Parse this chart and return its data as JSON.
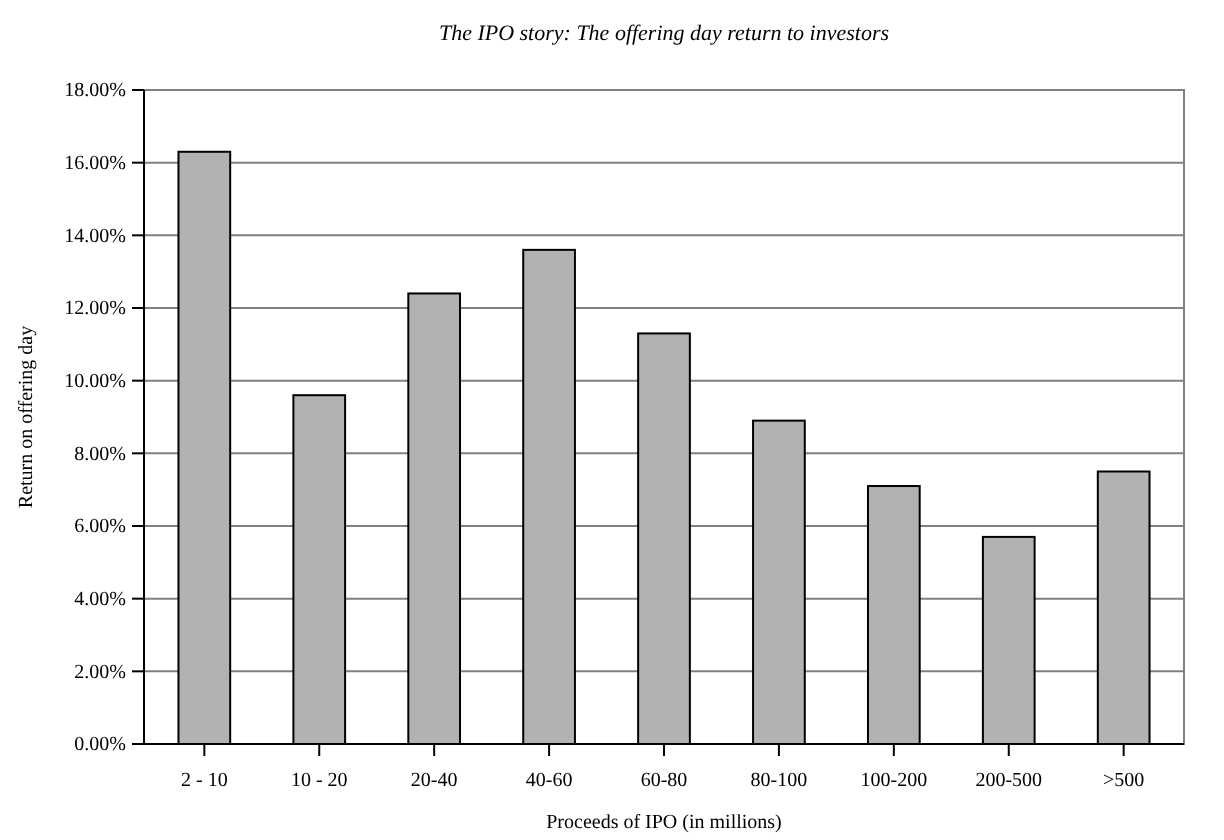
{
  "chart_data": {
    "type": "bar",
    "title": "The IPO story: The offering day return to investors",
    "xlabel": "Proceeds of IPO (in millions)",
    "ylabel": "Return on offering day",
    "categories": [
      "2 - 10",
      "10 - 20",
      "20-40",
      "40-60",
      "60-80",
      "80-100",
      "100-200",
      "200-500",
      ">500"
    ],
    "values": [
      16.3,
      9.6,
      12.4,
      13.6,
      11.3,
      8.9,
      7.1,
      5.7,
      7.5
    ],
    "color": "#b2b2b2",
    "ylim": [
      0,
      18
    ],
    "yticks": [
      {
        "value": 0,
        "label": "0.00%"
      },
      {
        "value": 2,
        "label": "2.00%"
      },
      {
        "value": 4,
        "label": "4.00%"
      },
      {
        "value": 6,
        "label": "6.00%"
      },
      {
        "value": 8,
        "label": "8.00%"
      },
      {
        "value": 10,
        "label": "10.00%"
      },
      {
        "value": 12,
        "label": "12.00%"
      },
      {
        "value": 14,
        "label": "14.00%"
      },
      {
        "value": 16,
        "label": "16.00%"
      },
      {
        "value": 18,
        "label": "18.00%"
      }
    ],
    "grid": "y"
  }
}
